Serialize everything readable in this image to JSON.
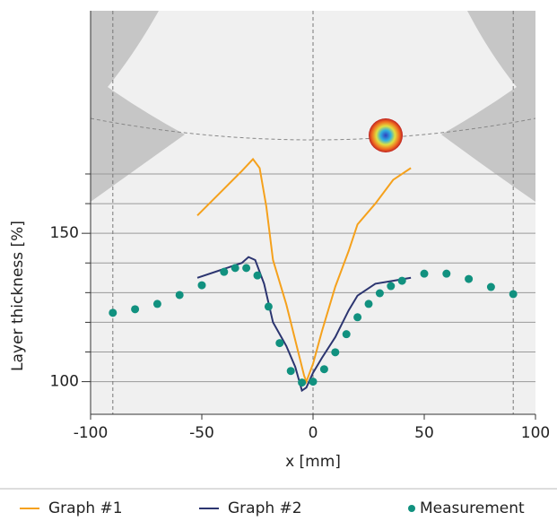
{
  "chart_data": {
    "type": "line",
    "xlabel": "x [mm]",
    "ylabel": "Layer thickness [%]",
    "xlim": [
      -100,
      100
    ],
    "xticks": [
      -100,
      -50,
      0,
      50,
      100
    ],
    "ylim": [
      89,
      225
    ],
    "yticks": [
      100,
      150
    ],
    "minor_yticks": [
      110,
      120,
      130,
      140,
      160,
      170
    ],
    "vlines": [
      -90,
      0,
      90
    ],
    "legend": "bottom",
    "series": [
      {
        "name": "Graph #1",
        "color": "#f5a11c",
        "style": "line",
        "x": [
          -52,
          -40,
          -32,
          -27,
          -24,
          -21,
          -18,
          -12,
          -8,
          -4,
          -3,
          0,
          4,
          10,
          16,
          20,
          28,
          36,
          44
        ],
        "values": [
          156,
          165,
          171,
          175,
          172,
          159,
          141,
          126,
          114,
          102,
          100,
          106,
          117,
          132,
          144,
          153,
          160,
          168,
          172
        ]
      },
      {
        "name": "Graph #2",
        "color": "#2c3570",
        "style": "line",
        "x": [
          -52,
          -40,
          -32,
          -29,
          -26,
          -22,
          -18,
          -12,
          -8,
          -5,
          -3,
          0,
          4,
          10,
          16,
          20,
          28,
          36,
          44
        ],
        "values": [
          135,
          138,
          140,
          142,
          141,
          133,
          120,
          112,
          105,
          97,
          98,
          103,
          108,
          115,
          124,
          129,
          133,
          134,
          135
        ]
      },
      {
        "name": "Measurement",
        "color": "#11917f",
        "style": "scatter",
        "x": [
          -90,
          -80,
          -70,
          -60,
          -50,
          -40,
          -35,
          -30,
          -25,
          -20,
          -15,
          -10,
          -5,
          0,
          5,
          10,
          15,
          20,
          25,
          30,
          35,
          40,
          50,
          60,
          70,
          80,
          90
        ],
        "values": [
          123.2,
          124.4,
          126.2,
          129.2,
          132.5,
          137,
          138.3,
          138.3,
          135.8,
          125.3,
          113,
          103.6,
          99.7,
          100,
          104.2,
          109.9,
          116,
          121.7,
          126.2,
          129.8,
          132.2,
          134,
          136.4,
          136.4,
          134.6,
          131.9,
          129.5
        ]
      }
    ]
  }
}
